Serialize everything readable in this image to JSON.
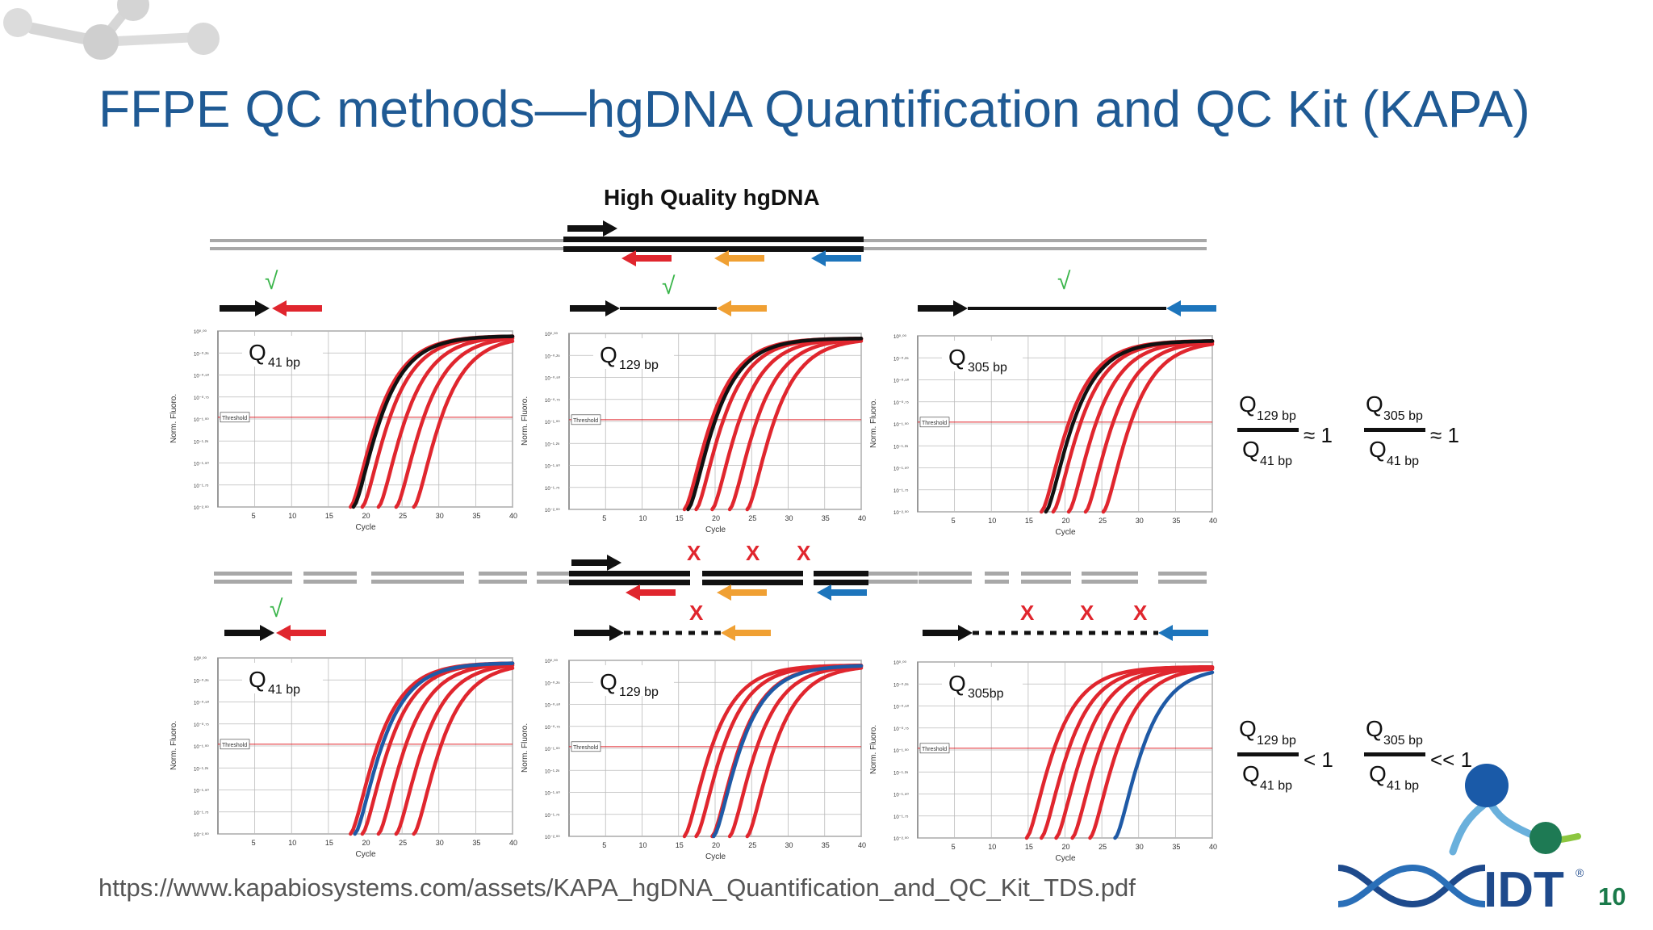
{
  "slide": {
    "title": "FFPE QC methods—hgDNA Quantification and QC Kit (KAPA)",
    "source_url": "https://www.kapabiosystems.com/assets/KAPA_hgDNA_Quantification_and_QC_Kit_TDS.pdf",
    "page_number": "10"
  },
  "figure": {
    "header": "High Quality hgDNA",
    "check_mark": "√",
    "fail_mark": "X",
    "threshold_label": "Threshold",
    "y_axis_label": "Norm. Fluoro.",
    "x_axis_label": "Cycle",
    "x_ticks": [
      "5",
      "10",
      "15",
      "20",
      "25",
      "30",
      "35",
      "40"
    ],
    "q_symbol": "Q",
    "panels_top": [
      {
        "subscript": "41 bp"
      },
      {
        "subscript": "129 bp"
      },
      {
        "subscript": "305 bp"
      }
    ],
    "panels_bottom": [
      {
        "subscript": "41 bp"
      },
      {
        "subscript": "129 bp"
      },
      {
        "subscript": "305bp"
      }
    ],
    "ratios_top": [
      {
        "num": "129 bp",
        "den": "41 bp",
        "op": "≈ 1"
      },
      {
        "num": "305 bp",
        "den": "41 bp",
        "op": "≈ 1"
      }
    ],
    "ratios_bottom": [
      {
        "num": "129 bp",
        "den": "41 bp",
        "op": "< 1"
      },
      {
        "num": "305 bp",
        "den": "41 bp",
        "op": "<< 1"
      }
    ]
  },
  "logo": {
    "text": "IDT",
    "mark": "®"
  },
  "colors": {
    "title": "#1f5a94",
    "red_curve": "#e0262e",
    "blue_curve": "#1f5aa6",
    "orange_arrow": "#f0a033",
    "blue_arrow": "#1d75bc",
    "check_green": "#3ab54a",
    "logo_navy": "#1e4a8c"
  }
}
